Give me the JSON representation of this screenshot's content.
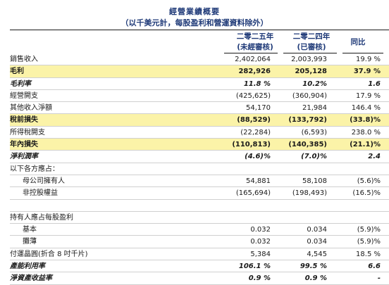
{
  "header": {
    "title": "經營業績概要",
    "subtitle": "（以千美元計，每股盈利和營運資料除外）",
    "columns": [
      {
        "line1": "二零二五年",
        "line2": "(未經審核)"
      },
      {
        "line1": "二零二四年",
        "line2": "(已審核)"
      },
      {
        "line1": "同比",
        "line2": ""
      }
    ]
  },
  "rows": [
    {
      "label": "銷售收入",
      "v1": "2,402,064",
      "v2": "2,003,993",
      "v3": "19.9 %",
      "style": ""
    },
    {
      "label": "毛利",
      "v1": "282,926",
      "v2": "205,128",
      "v3": "37.9 %",
      "style": "hl"
    },
    {
      "label": "毛利率",
      "v1": "11.8 %",
      "v2": "10.2%",
      "v3": "1.6",
      "style": "it"
    },
    {
      "label": "經營開支",
      "v1": "(425,625)",
      "v2": "(360,904)",
      "v3": "17.9 %",
      "style": ""
    },
    {
      "label": "其他收入淨額",
      "v1": "54,170",
      "v2": "21,984",
      "v3": "146.4 %",
      "style": ""
    },
    {
      "label": "稅前損失",
      "v1": "(88,529)",
      "v2": "(133,792)",
      "v3": "(33.8)%",
      "style": "hl"
    },
    {
      "label": "所得稅開支",
      "v1": "(22,284)",
      "v2": "(6,593)",
      "v3": "238.0 %",
      "style": ""
    },
    {
      "label": "年內損失",
      "v1": "(110,813)",
      "v2": "(140,385)",
      "v3": "(21.1)%",
      "style": "hl"
    },
    {
      "label": "淨利潤率",
      "v1": "(4.6)%",
      "v2": "(7.0)%",
      "v3": "2.4",
      "style": "it"
    },
    {
      "label": "以下各方應占：",
      "v1": "",
      "v2": "",
      "v3": "",
      "style": ""
    },
    {
      "label": "母公司擁有人",
      "v1": "54,881",
      "v2": "58,108",
      "v3": "(5.6)%",
      "style": "ind"
    },
    {
      "label": "非控股權益",
      "v1": "(165,694)",
      "v2": "(198,493)",
      "v3": "(16.5)%",
      "style": "ind"
    },
    {
      "label": "",
      "v1": "",
      "v2": "",
      "v3": "",
      "style": "gap"
    },
    {
      "label": "持有人應占每股盈利",
      "v1": "",
      "v2": "",
      "v3": "",
      "style": ""
    },
    {
      "label": "基本",
      "v1": "0.032",
      "v2": "0.034",
      "v3": "(5.9)%",
      "style": "ind"
    },
    {
      "label": "攤薄",
      "v1": "0.032",
      "v2": "0.034",
      "v3": "(5.9)%",
      "style": "ind"
    },
    {
      "label": "付運晶圓(折合 8 吋千片)",
      "v1": "5,384",
      "v2": "4,545",
      "v3": "18.5 %",
      "style": ""
    },
    {
      "label": "產能利用率",
      "v1": "106.1 %",
      "v2": "99.5 %",
      "v3": "6.6",
      "style": "itl"
    },
    {
      "label": "淨資產收益率",
      "v1": "0.9 %",
      "v2": "0.9 %",
      "v3": "-",
      "style": "itl"
    }
  ]
}
